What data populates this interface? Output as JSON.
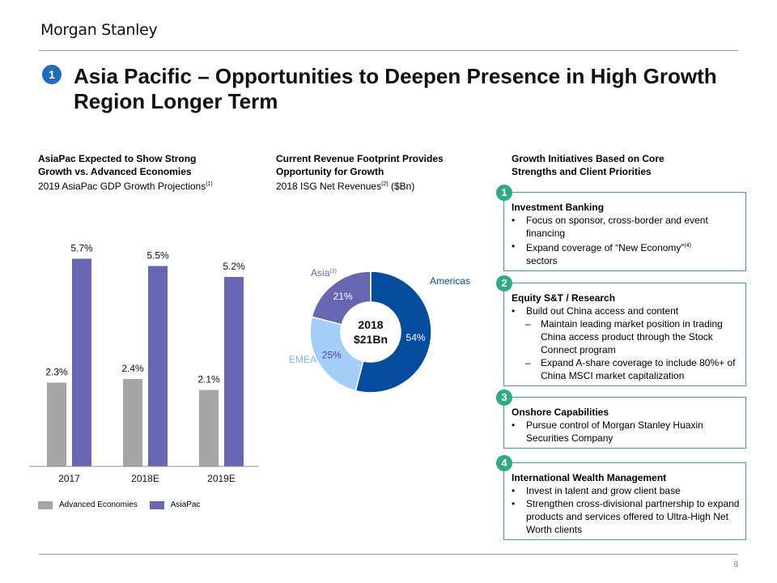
{
  "brand": "Morgan Stanley",
  "page_number": "9",
  "section_badge": "1",
  "title": "Asia Pacific – Opportunities to Deepen Presence in High Growth Region Longer Term",
  "left_section": {
    "heading": "AsiaPac Expected to Show Strong Growth vs. Advanced Economies",
    "subheading": "2019 AsiaPac GDP Growth Projections",
    "subheading_note": "(1)"
  },
  "middle_section": {
    "heading": "Current Revenue Footprint Provides Opportunity for Growth",
    "subheading": "2018 ISG Net Revenues",
    "subheading_note": "(2)",
    "subheading_unit": "($Bn)"
  },
  "right_section": {
    "heading": "Growth Initiatives Based on Core Strengths and Client Priorities"
  },
  "chart_data": [
    {
      "type": "bar",
      "categories": [
        "2017",
        "2018E",
        "2019E"
      ],
      "series": [
        {
          "name": "Advanced Economies",
          "values": [
            2.3,
            2.4,
            2.1
          ],
          "labels": [
            "2.3%",
            "2.4%",
            "2.1%"
          ],
          "color": "#a6a6a6"
        },
        {
          "name": "AsiaPac",
          "values": [
            5.7,
            5.5,
            5.2
          ],
          "labels": [
            "5.7%",
            "5.5%",
            "5.2%"
          ],
          "color": "#6666b3"
        }
      ],
      "ylim": [
        0,
        6
      ]
    },
    {
      "type": "pie",
      "center_label": [
        "2018",
        "$21Bn"
      ],
      "slices": [
        {
          "name": "Americas",
          "value": 54,
          "label": "54%",
          "color": "#064c9e"
        },
        {
          "name": "EMEA",
          "value": 25,
          "label": "25%",
          "color": "#a4cdf8"
        },
        {
          "name": "Asia",
          "name_note": "(3)",
          "value": 21,
          "label": "21%",
          "color": "#6666b3"
        }
      ]
    }
  ],
  "initiatives": [
    {
      "number": "1",
      "title": "Investment Banking",
      "bullets": [
        "Focus on sponsor, cross-border and event financing",
        "Expand coverage  of “New Economy”"
      ],
      "bullet2_note": "(4)",
      "bullet2_tail": "sectors"
    },
    {
      "number": "2",
      "title": "Equity S&T / Research",
      "bullets": [
        "Build out China access and content"
      ],
      "sub_bullets": [
        "Maintain leading market position in trading China access product through the Stock Connect program",
        "Expand A-share coverage  to include 80%+ of China MSCI market capitalization"
      ]
    },
    {
      "number": "3",
      "title": "Onshore Capabilities",
      "bullets": [
        "Pursue control of Morgan Stanley Huaxin Securities Company"
      ]
    },
    {
      "number": "4",
      "title": "International Wealth Management",
      "bullets": [
        "Invest  in talent and grow client base",
        "Strengthen  cross-divisional  partnership  to expand products and services offered to Ultra-High Net Worth clients"
      ]
    }
  ]
}
